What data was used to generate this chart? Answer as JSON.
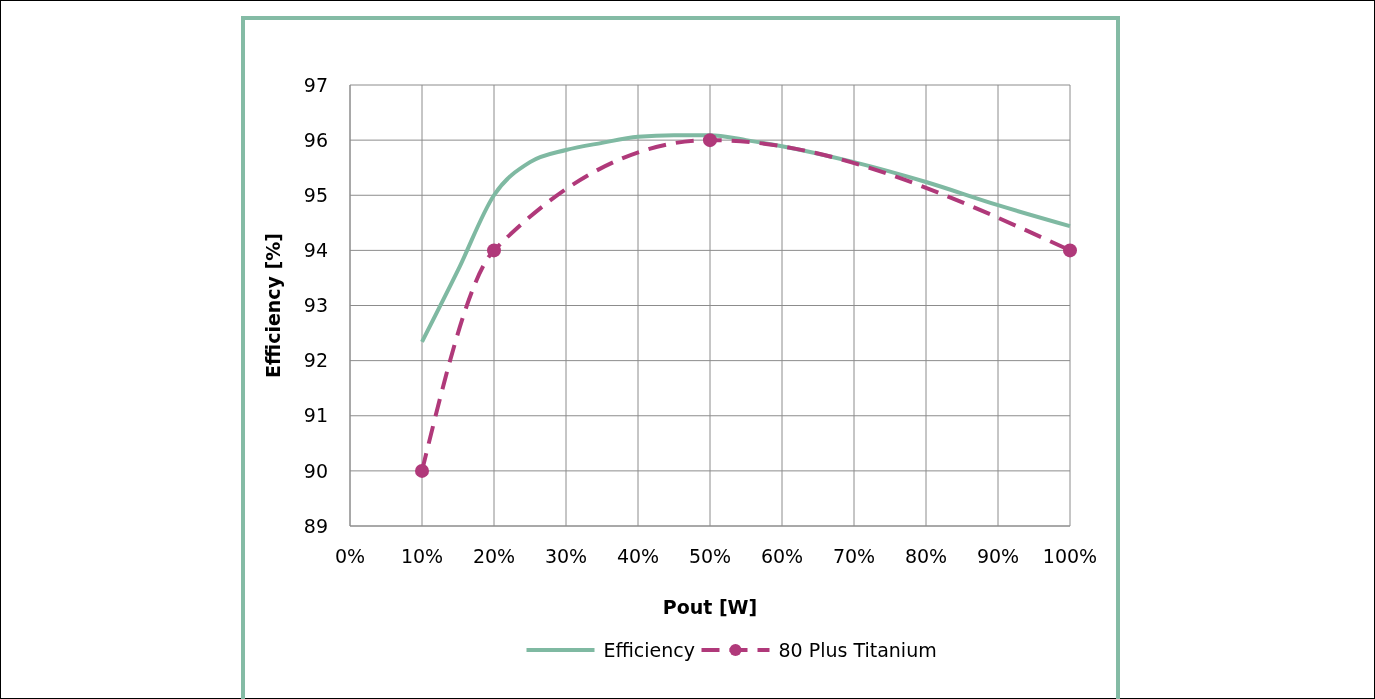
{
  "chart_data": {
    "type": "line",
    "xlabel": "Pout [W]",
    "ylabel": "Efficiency [%]",
    "xlim": [
      0,
      100
    ],
    "ylim": [
      89,
      97
    ],
    "xticks": [
      {
        "value": 0,
        "label": "0%"
      },
      {
        "value": 10,
        "label": "10%"
      },
      {
        "value": 20,
        "label": "20%"
      },
      {
        "value": 30,
        "label": "30%"
      },
      {
        "value": 40,
        "label": "40%"
      },
      {
        "value": 50,
        "label": "50%"
      },
      {
        "value": 60,
        "label": "60%"
      },
      {
        "value": 70,
        "label": "70%"
      },
      {
        "value": 80,
        "label": "80%"
      },
      {
        "value": 90,
        "label": "90%"
      },
      {
        "value": 100,
        "label": "100%"
      }
    ],
    "yticks": [
      89,
      90,
      91,
      92,
      93,
      94,
      95,
      96,
      97
    ],
    "grid": true,
    "legend": "bottom",
    "series": [
      {
        "name": "Efficiency",
        "color": "#7fb9a2",
        "marker": "none",
        "line_style": "solid",
        "x": [
          10,
          15,
          20,
          25,
          30,
          35,
          40,
          45,
          50,
          55,
          60,
          70,
          80,
          90,
          100
        ],
        "values": [
          92.34,
          93.64,
          95.0,
          95.6,
          95.82,
          95.95,
          96.06,
          96.09,
          96.09,
          96.0,
          95.89,
          95.6,
          95.24,
          94.82,
          94.44
        ]
      },
      {
        "name": "80 Plus Titanium",
        "color": "#b0397a",
        "marker": "circle",
        "line_style": "dashed",
        "x": [
          10,
          20,
          50,
          100
        ],
        "values": [
          90,
          94,
          96,
          94
        ]
      }
    ]
  }
}
